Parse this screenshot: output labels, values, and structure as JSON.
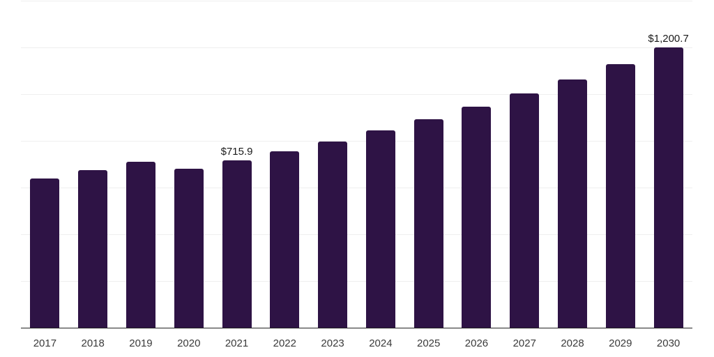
{
  "chart_data": {
    "type": "bar",
    "categories": [
      "2017",
      "2018",
      "2019",
      "2020",
      "2021",
      "2022",
      "2023",
      "2024",
      "2025",
      "2026",
      "2027",
      "2028",
      "2029",
      "2030"
    ],
    "values": [
      637.4,
      675.6,
      710.2,
      680.1,
      715.9,
      755.0,
      796.4,
      844.0,
      891.2,
      945.4,
      1003.0,
      1063.5,
      1129.3,
      1200.7
    ],
    "annotations": [
      {
        "index": 4,
        "text": "$715.9"
      },
      {
        "index": 13,
        "text": "$1,200.7"
      }
    ],
    "title": "",
    "xlabel": "",
    "ylabel": "",
    "ylim": [
      0,
      1400
    ],
    "gridline_step": 200,
    "grid": "horizontal-only",
    "legend": "none",
    "y_axis_labels_visible": false,
    "bar_color": "#2E1345",
    "gridline_color": "#efefef",
    "axis_line_color": "#222222",
    "value_label_color": "#1a1a1a",
    "tick_label_color": "#3a3a3a",
    "background_color": "#ffffff"
  }
}
